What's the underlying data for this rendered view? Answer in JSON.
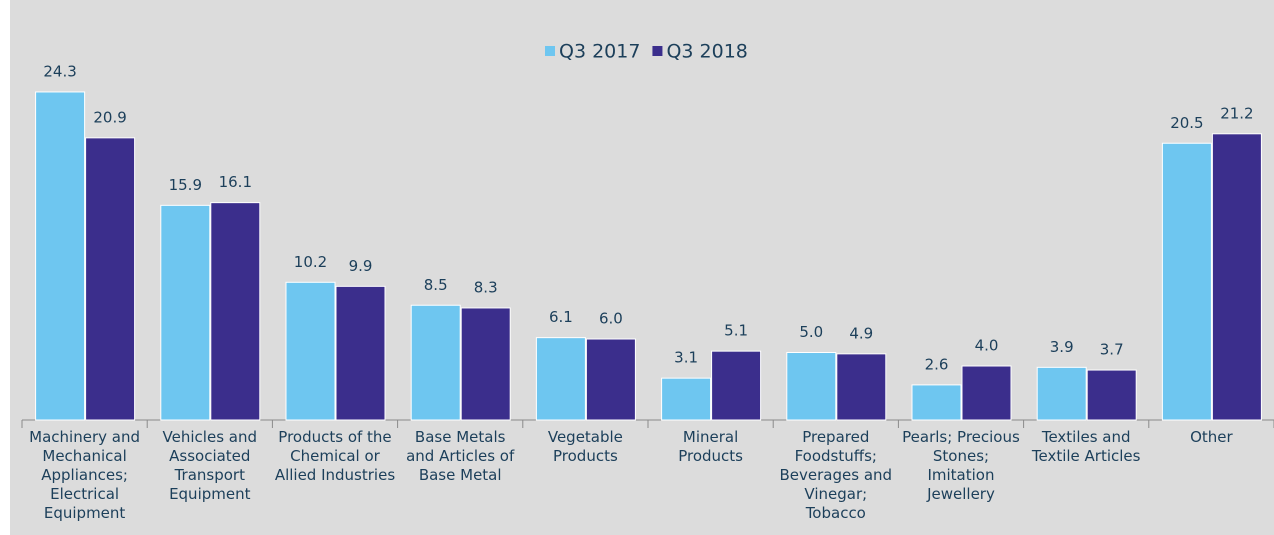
{
  "chart_data": {
    "type": "bar",
    "categories": [
      "Machinery and Mechanical Appliances; Electrical Equipment",
      "Vehicles and Associated Transport Equipment",
      "Products of the Chemical or Allied Industries",
      "Base Metals and Articles of Base Metal",
      "Vegetable Products",
      "Mineral Products",
      "Prepared Foodstuffs; Beverages and Vinegar; Tobacco",
      "Pearls; Precious Stones; Imitation Jewellery",
      "Textiles and Textile Articles",
      "Other"
    ],
    "series": [
      {
        "name": "Q3 2017",
        "color": "#6ec6f0",
        "values": [
          24.3,
          15.9,
          10.2,
          8.5,
          6.1,
          3.1,
          5.0,
          2.6,
          3.9,
          20.5
        ],
        "value_labels": [
          "24.3",
          "15.9",
          "10.2",
          "8.5",
          "6.1",
          "3.1",
          "5.0",
          "2.6",
          "3.9",
          "20.5"
        ]
      },
      {
        "name": "Q3 2018",
        "color": "#3b2e8c",
        "values": [
          20.9,
          16.1,
          9.9,
          8.3,
          6.0,
          5.1,
          4.9,
          4.0,
          3.7,
          21.2
        ],
        "value_labels": [
          "20.9",
          "16.1",
          "9.9",
          "8.3",
          "6.0",
          "5.1",
          "4.9",
          "4.0",
          "3.7",
          "21.2"
        ]
      }
    ],
    "legend": "top"
  }
}
